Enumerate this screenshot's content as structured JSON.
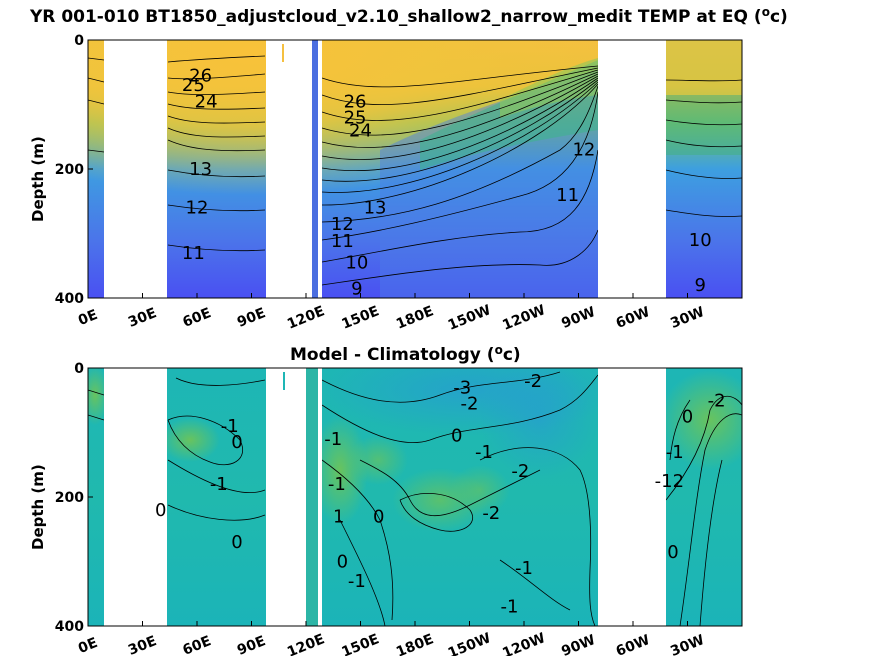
{
  "chart_data": [
    {
      "type": "heatmap",
      "title": "YR 001-010 BT1850_adjustcloud_v2.10_shallow2_narrow_medit TEMP at EQ (",
      "title_unit": "o",
      "title_end": "c)",
      "ylabel": "Depth (m)",
      "ylim": [
        400,
        0
      ],
      "yticks": [
        "0",
        "200",
        "400"
      ],
      "xticks": [
        "0E",
        "30E",
        "60E",
        "90E",
        "120E",
        "150E",
        "180E",
        "150W",
        "120W",
        "90W",
        "60W",
        "30W"
      ],
      "colors": {
        "warm": "#f5c040",
        "mid": "#3fb28f",
        "cool": "#4b6ee0",
        "deep": "#4a4ff0"
      },
      "contour_labels": [
        {
          "text": "26",
          "lon": 62,
          "depth": 55
        },
        {
          "text": "25",
          "lon": 58,
          "depth": 70
        },
        {
          "text": "24",
          "lon": 65,
          "depth": 95
        },
        {
          "text": "13",
          "lon": 62,
          "depth": 200
        },
        {
          "text": "12",
          "lon": 60,
          "depth": 260
        },
        {
          "text": "11",
          "lon": 58,
          "depth": 330
        },
        {
          "text": "26",
          "lon": 147,
          "depth": 95
        },
        {
          "text": "25",
          "lon": 147,
          "depth": 120
        },
        {
          "text": "24",
          "lon": 150,
          "depth": 140
        },
        {
          "text": "12",
          "lon": 140,
          "depth": 285
        },
        {
          "text": "11",
          "lon": 140,
          "depth": 312
        },
        {
          "text": "10",
          "lon": 148,
          "depth": 345
        },
        {
          "text": "9",
          "lon": 148,
          "depth": 385
        },
        {
          "text": "13",
          "lon": 158,
          "depth": 260
        },
        {
          "text": "12",
          "lon": 273,
          "depth": 170
        },
        {
          "text": "11",
          "lon": 264,
          "depth": 240
        },
        {
          "text": "10",
          "lon": 337,
          "depth": 310
        },
        {
          "text": "9",
          "lon": 337,
          "depth": 380
        }
      ]
    },
    {
      "type": "heatmap",
      "title": "Model - Climatology (",
      "title_unit": "o",
      "title_end": "c)",
      "ylabel": "Depth (m)",
      "ylim": [
        400,
        0
      ],
      "yticks": [
        "0",
        "200",
        "400"
      ],
      "xticks": [
        "0E",
        "30E",
        "60E",
        "90E",
        "120E",
        "150E",
        "180E",
        "150W",
        "120W",
        "90W",
        "60W",
        "30W"
      ],
      "colors": {
        "base": "#1fb8b2",
        "warm": "#5ec266",
        "cool": "#2a9fd8"
      },
      "contour_labels": [
        {
          "text": "-1",
          "lon": 78,
          "depth": 90
        },
        {
          "text": "0",
          "lon": 82,
          "depth": 115
        },
        {
          "text": "-1",
          "lon": 72,
          "depth": 180
        },
        {
          "text": "0",
          "lon": 40,
          "depth": 220
        },
        {
          "text": "0",
          "lon": 82,
          "depth": 270
        },
        {
          "text": "-1",
          "lon": 135,
          "depth": 110
        },
        {
          "text": "-1",
          "lon": 137,
          "depth": 180
        },
        {
          "text": "1",
          "lon": 138,
          "depth": 230
        },
        {
          "text": "0",
          "lon": 140,
          "depth": 300
        },
        {
          "text": "-1",
          "lon": 148,
          "depth": 330
        },
        {
          "text": "0",
          "lon": 160,
          "depth": 230
        },
        {
          "text": "0",
          "lon": 203,
          "depth": 105
        },
        {
          "text": "-3",
          "lon": 206,
          "depth": 30
        },
        {
          "text": "-2",
          "lon": 210,
          "depth": 55
        },
        {
          "text": "-1",
          "lon": 218,
          "depth": 130
        },
        {
          "text": "-2",
          "lon": 238,
          "depth": 160
        },
        {
          "text": "-2",
          "lon": 222,
          "depth": 225
        },
        {
          "text": "-1",
          "lon": 240,
          "depth": 310
        },
        {
          "text": "-1",
          "lon": 232,
          "depth": 370
        },
        {
          "text": "-2",
          "lon": 245,
          "depth": 20
        },
        {
          "text": "0",
          "lon": 330,
          "depth": 75
        },
        {
          "text": "-1",
          "lon": 323,
          "depth": 130
        },
        {
          "text": "-2",
          "lon": 346,
          "depth": 50
        },
        {
          "text": "0",
          "lon": 322,
          "depth": 285
        },
        {
          "text": "-12",
          "lon": 320,
          "depth": 175
        }
      ]
    }
  ]
}
